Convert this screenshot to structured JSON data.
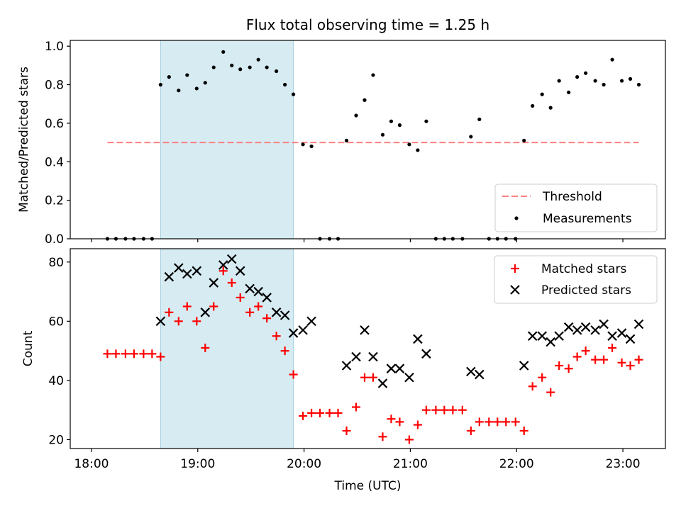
{
  "chart_data": [
    {
      "type": "scatter",
      "title": "Flux total observing time = 1.25 h",
      "xlabel": "",
      "ylabel": "Matched/Predicted stars",
      "x_unit": "hours (UTC)",
      "xlim": [
        17.8,
        23.4
      ],
      "ylim": [
        0,
        1.03
      ],
      "yticks": [
        0.0,
        0.2,
        0.4,
        0.6,
        0.8,
        1.0
      ],
      "ytick_labels": [
        "0.0",
        "0.2",
        "0.4",
        "0.6",
        "0.8",
        "1.0"
      ],
      "shaded_interval": [
        18.65,
        19.9
      ],
      "legend": {
        "position": "lower-right",
        "entries": [
          "Threshold",
          "Measurements"
        ]
      },
      "threshold": {
        "name": "Threshold",
        "y": 0.5,
        "x_range": [
          18.15,
          23.15
        ],
        "color": "#ff8080"
      },
      "series": [
        {
          "name": "Measurements",
          "color": "#000000",
          "x": [
            18.15,
            18.23,
            18.32,
            18.4,
            18.49,
            18.57,
            18.65,
            18.73,
            18.82,
            18.9,
            18.99,
            19.07,
            19.15,
            19.24,
            19.32,
            19.4,
            19.49,
            19.57,
            19.65,
            19.74,
            19.82,
            19.9,
            19.99,
            20.07,
            20.15,
            20.24,
            20.32,
            20.4,
            20.49,
            20.57,
            20.65,
            20.74,
            20.82,
            20.9,
            20.99,
            21.07,
            21.15,
            21.24,
            21.32,
            21.4,
            21.49,
            21.57,
            21.65,
            21.74,
            21.82,
            21.9,
            21.99,
            22.07,
            22.15,
            22.24,
            22.32,
            22.4,
            22.49,
            22.57,
            22.65,
            22.74,
            22.82,
            22.9,
            22.99,
            23.07,
            23.15
          ],
          "y": [
            0.0,
            0.0,
            0.0,
            0.0,
            0.0,
            0.0,
            0.8,
            0.84,
            0.77,
            0.85,
            0.78,
            0.81,
            0.89,
            0.97,
            0.9,
            0.88,
            0.89,
            0.93,
            0.89,
            0.87,
            0.8,
            0.75,
            0.49,
            0.48,
            0.0,
            0.0,
            0.0,
            0.51,
            0.64,
            0.72,
            0.85,
            0.54,
            0.61,
            0.59,
            0.49,
            0.46,
            0.61,
            0.0,
            0.0,
            0.0,
            0.0,
            0.53,
            0.62,
            0.0,
            0.0,
            0.0,
            0.0,
            0.51,
            0.69,
            0.75,
            0.68,
            0.82,
            0.76,
            0.84,
            0.86,
            0.82,
            0.8,
            0.93,
            0.82,
            0.83,
            0.8
          ]
        }
      ]
    },
    {
      "type": "scatter",
      "xlabel": "Time (UTC)",
      "ylabel": "Count",
      "x_unit": "hours (UTC)",
      "xlim": [
        17.8,
        23.4
      ],
      "ylim": [
        17,
        84.5
      ],
      "xticks": [
        18,
        19,
        20,
        21,
        22,
        23
      ],
      "xtick_labels": [
        "18:00",
        "19:00",
        "20:00",
        "21:00",
        "22:00",
        "23:00"
      ],
      "yticks": [
        20,
        40,
        60,
        80
      ],
      "ytick_labels": [
        "20",
        "40",
        "60",
        "80"
      ],
      "shaded_interval": [
        18.65,
        19.9
      ],
      "legend": {
        "position": "top-right",
        "entries": [
          "Matched stars",
          "Predicted stars"
        ]
      },
      "series": [
        {
          "name": "Matched stars",
          "marker": "plus",
          "color": "#ff0000",
          "x": [
            18.15,
            18.23,
            18.32,
            18.4,
            18.49,
            18.57,
            18.65,
            18.73,
            18.82,
            18.9,
            18.99,
            19.07,
            19.15,
            19.24,
            19.32,
            19.4,
            19.49,
            19.57,
            19.65,
            19.74,
            19.82,
            19.9,
            19.99,
            20.07,
            20.15,
            20.24,
            20.32,
            20.4,
            20.49,
            20.57,
            20.65,
            20.74,
            20.82,
            20.9,
            20.99,
            21.07,
            21.15,
            21.24,
            21.32,
            21.4,
            21.49,
            21.57,
            21.65,
            21.74,
            21.82,
            21.9,
            21.99,
            22.07,
            22.15,
            22.24,
            22.32,
            22.4,
            22.49,
            22.57,
            22.65,
            22.74,
            22.82,
            22.9,
            22.99,
            23.07,
            23.15
          ],
          "y": [
            49,
            49,
            49,
            49,
            49,
            49,
            48,
            63,
            60,
            65,
            60,
            51,
            65,
            77,
            73,
            68,
            63,
            65,
            61,
            55,
            50,
            42,
            28,
            29,
            29,
            29,
            29,
            23,
            31,
            41,
            41,
            21,
            27,
            26,
            20,
            25,
            30,
            30,
            30,
            30,
            30,
            23,
            26,
            26,
            26,
            26,
            26,
            23,
            38,
            41,
            36,
            45,
            44,
            48,
            50,
            47,
            47,
            51,
            46,
            45,
            47
          ]
        },
        {
          "name": "Predicted stars",
          "marker": "x",
          "color": "#000000",
          "x": [
            18.65,
            18.73,
            18.82,
            18.9,
            18.99,
            19.07,
            19.15,
            19.24,
            19.32,
            19.4,
            19.49,
            19.57,
            19.65,
            19.74,
            19.82,
            19.9,
            19.99,
            20.07,
            20.4,
            20.49,
            20.57,
            20.65,
            20.74,
            20.82,
            20.9,
            20.99,
            21.07,
            21.15,
            21.57,
            21.65,
            22.07,
            22.15,
            22.24,
            22.32,
            22.4,
            22.49,
            22.57,
            22.65,
            22.74,
            22.82,
            22.9,
            22.99,
            23.07,
            23.15
          ],
          "y": [
            60,
            75,
            78,
            76,
            77,
            63,
            73,
            79,
            81,
            77,
            71,
            70,
            68,
            63,
            62,
            56,
            57,
            60,
            45,
            48,
            57,
            48,
            39,
            44,
            44,
            41,
            54,
            49,
            43,
            42,
            45,
            55,
            55,
            53,
            55,
            58,
            57,
            58,
            57,
            59,
            55,
            56,
            54,
            59
          ]
        }
      ]
    }
  ]
}
